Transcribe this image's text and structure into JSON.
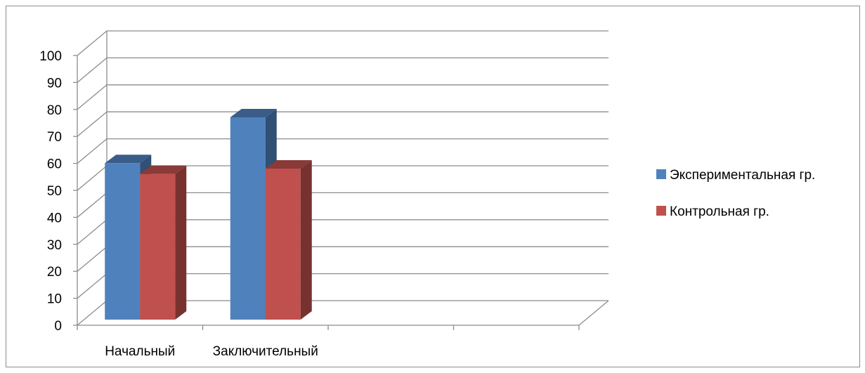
{
  "chart_data": {
    "type": "bar",
    "title": "",
    "xlabel": "",
    "ylabel": "",
    "ylim": [
      0,
      100
    ],
    "yticks": [
      0,
      10,
      20,
      30,
      40,
      50,
      60,
      70,
      80,
      90,
      100
    ],
    "categories": [
      "Начальный",
      "Заключительный",
      "",
      ""
    ],
    "series": [
      {
        "name": "Экспериментальная гр.",
        "values": [
          58,
          75,
          null,
          null
        ],
        "color": "#4f81bd"
      },
      {
        "name": "Контрольная гр.",
        "values": [
          54,
          56,
          null,
          null
        ],
        "color": "#c0504d"
      }
    ],
    "grid": true,
    "legend_position": "right",
    "three_d": true
  }
}
